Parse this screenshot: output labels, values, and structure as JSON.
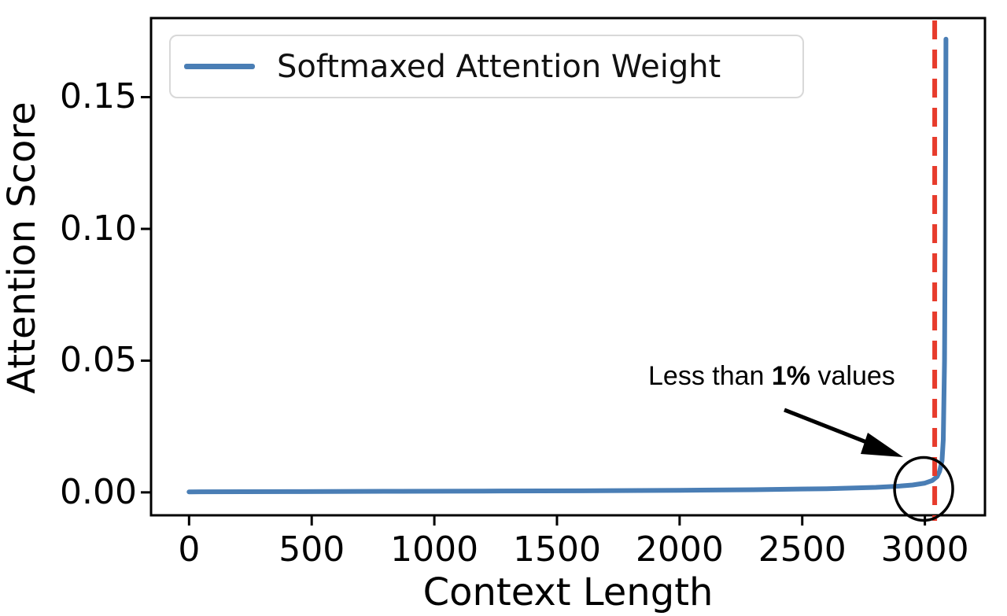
{
  "figure": {
    "background": "#ffffff",
    "text_color": "#000000"
  },
  "legend": {
    "label": "Softmaxed Attention Weight"
  },
  "annotation": {
    "prefix": "Less than ",
    "bold": "1%",
    "suffix": " values"
  },
  "chart_data": {
    "type": "line",
    "title": "",
    "xlabel": "Context Length",
    "ylabel": "Attention Score",
    "x_ticks": [
      0,
      500,
      1000,
      1500,
      2000,
      2500,
      3000
    ],
    "y_ticks": [
      0.0,
      0.05,
      0.1,
      0.15
    ],
    "y_tick_labels": [
      "0.00",
      "0.05",
      "0.10",
      "0.15"
    ],
    "xlim": [
      -155,
      3245
    ],
    "ylim": [
      -0.0087,
      0.18
    ],
    "grid": false,
    "legend_position": "upper left",
    "series": [
      {
        "name": "Softmaxed Attention Weight",
        "color": "#4a7eb5",
        "line_width": 6,
        "points": [
          [
            0,
            0.0002
          ],
          [
            400,
            0.0003
          ],
          [
            800,
            0.0004
          ],
          [
            1200,
            0.0005
          ],
          [
            1600,
            0.0006
          ],
          [
            2000,
            0.0008
          ],
          [
            2300,
            0.001
          ],
          [
            2600,
            0.0014
          ],
          [
            2800,
            0.0019
          ],
          [
            2900,
            0.0024
          ],
          [
            2950,
            0.0028
          ],
          [
            3000,
            0.0035
          ],
          [
            3030,
            0.0045
          ],
          [
            3050,
            0.006
          ],
          [
            3060,
            0.008
          ],
          [
            3070,
            0.012
          ],
          [
            3075,
            0.02
          ],
          [
            3080,
            0.05
          ],
          [
            3083,
            0.1
          ],
          [
            3085,
            0.14
          ],
          [
            3086,
            0.172
          ]
        ]
      }
    ],
    "vline": {
      "x": 3040,
      "color": "#e73b2c",
      "style": "dashed"
    },
    "annotation": {
      "text": "Less than 1% values",
      "bold_part": "1%",
      "circle_center_data": [
        2995,
        0.004
      ],
      "arrow": true
    }
  }
}
